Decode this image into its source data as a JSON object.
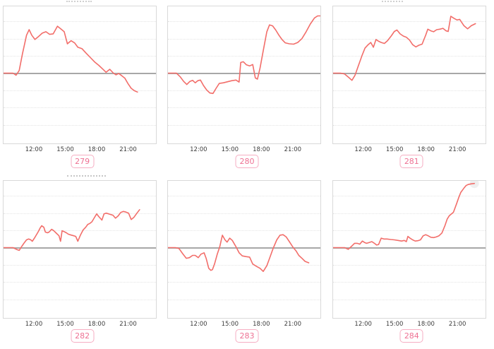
{
  "page": {
    "background": "#ffffff"
  },
  "styles": {
    "line_color": "#f26e6a",
    "zero_line_color": "#a8a8a8",
    "grid_line_color": "#e4e4e4",
    "plot_border_color": "#d9d9d9",
    "axis_text_color": "#3c3c3c",
    "badge_text_color": "#ee7193",
    "badge_border_color": "#f6aec3",
    "end_halo_color": "#efefef"
  },
  "chart_data": [
    {
      "type": "line",
      "label": "279",
      "x_unit": "hour_of_day",
      "x_range": [
        9,
        23.7
      ],
      "x_ticks": [
        "12:00",
        "15:00",
        "18:00",
        "21:00"
      ],
      "tick_hours": [
        12,
        15,
        18,
        21
      ],
      "y_unit": "gridline_units_from_baseline",
      "baseline": 0,
      "grid": "dotted-horizontal",
      "legend": "none",
      "end_marker_halo": false,
      "points": [
        [
          9,
          0
        ],
        [
          9.9,
          0
        ],
        [
          10.2,
          -0.12
        ],
        [
          10.5,
          0.15
        ],
        [
          10.8,
          1.1
        ],
        [
          11.2,
          2.2
        ],
        [
          11.45,
          2.52
        ],
        [
          11.7,
          2.2
        ],
        [
          12.0,
          1.95
        ],
        [
          12.3,
          2.1
        ],
        [
          12.7,
          2.32
        ],
        [
          13.05,
          2.4
        ],
        [
          13.4,
          2.25
        ],
        [
          13.75,
          2.28
        ],
        [
          14.15,
          2.72
        ],
        [
          14.5,
          2.55
        ],
        [
          14.8,
          2.4
        ],
        [
          15.1,
          1.7
        ],
        [
          15.45,
          1.88
        ],
        [
          15.8,
          1.75
        ],
        [
          16.1,
          1.5
        ],
        [
          16.5,
          1.42
        ],
        [
          16.9,
          1.15
        ],
        [
          17.3,
          0.9
        ],
        [
          17.7,
          0.65
        ],
        [
          18.1,
          0.45
        ],
        [
          18.5,
          0.22
        ],
        [
          18.8,
          0.05
        ],
        [
          19.15,
          0.22
        ],
        [
          19.5,
          0.0
        ],
        [
          19.75,
          -0.1
        ],
        [
          20.0,
          -0.02
        ],
        [
          20.3,
          -0.15
        ],
        [
          20.6,
          -0.3
        ],
        [
          20.9,
          -0.62
        ],
        [
          21.2,
          -0.88
        ],
        [
          21.5,
          -1.02
        ],
        [
          21.8,
          -1.1
        ]
      ]
    },
    {
      "type": "line",
      "label": "280",
      "x_unit": "hour_of_day",
      "x_range": [
        9,
        23.7
      ],
      "x_ticks": [
        "12:00",
        "15:00",
        "18:00",
        "21:00"
      ],
      "tick_hours": [
        12,
        15,
        18,
        21
      ],
      "y_unit": "gridline_units_from_baseline",
      "baseline": 0,
      "grid": "dotted-horizontal",
      "legend": "none",
      "end_marker_halo": false,
      "points": [
        [
          9,
          0
        ],
        [
          9.8,
          0
        ],
        [
          10.15,
          -0.2
        ],
        [
          10.5,
          -0.48
        ],
        [
          10.8,
          -0.66
        ],
        [
          11.1,
          -0.48
        ],
        [
          11.35,
          -0.42
        ],
        [
          11.6,
          -0.56
        ],
        [
          11.85,
          -0.44
        ],
        [
          12.1,
          -0.4
        ],
        [
          12.4,
          -0.72
        ],
        [
          12.7,
          -0.98
        ],
        [
          13.0,
          -1.15
        ],
        [
          13.3,
          -1.18
        ],
        [
          13.6,
          -0.88
        ],
        [
          13.9,
          -0.6
        ],
        [
          14.3,
          -0.56
        ],
        [
          14.7,
          -0.5
        ],
        [
          15.1,
          -0.44
        ],
        [
          15.5,
          -0.4
        ],
        [
          15.8,
          -0.52
        ],
        [
          15.95,
          0.62
        ],
        [
          16.2,
          0.66
        ],
        [
          16.5,
          0.48
        ],
        [
          16.8,
          0.42
        ],
        [
          17.1,
          0.5
        ],
        [
          17.35,
          -0.28
        ],
        [
          17.55,
          -0.35
        ],
        [
          17.8,
          0.3
        ],
        [
          18.1,
          1.3
        ],
        [
          18.45,
          2.4
        ],
        [
          18.7,
          2.8
        ],
        [
          19.0,
          2.74
        ],
        [
          19.3,
          2.5
        ],
        [
          19.6,
          2.2
        ],
        [
          19.9,
          1.95
        ],
        [
          20.2,
          1.76
        ],
        [
          20.6,
          1.7
        ],
        [
          21.0,
          1.68
        ],
        [
          21.4,
          1.78
        ],
        [
          21.8,
          2.0
        ],
        [
          22.2,
          2.4
        ],
        [
          22.6,
          2.85
        ],
        [
          23.0,
          3.2
        ],
        [
          23.3,
          3.32
        ],
        [
          23.65,
          3.32
        ]
      ]
    },
    {
      "type": "line",
      "label": "281",
      "x_unit": "hour_of_day",
      "x_range": [
        9,
        23.7
      ],
      "x_ticks": [
        "12:00",
        "15:00",
        "18:00",
        "21:00"
      ],
      "tick_hours": [
        12,
        15,
        18,
        21
      ],
      "y_unit": "gridline_units_from_baseline",
      "baseline": 0,
      "grid": "dotted-horizontal",
      "legend": "none",
      "end_marker_halo": false,
      "points": [
        [
          9,
          0
        ],
        [
          9.7,
          0
        ],
        [
          10.1,
          -0.05
        ],
        [
          10.5,
          -0.25
        ],
        [
          10.8,
          -0.42
        ],
        [
          11.1,
          -0.12
        ],
        [
          11.4,
          0.4
        ],
        [
          11.75,
          1.0
        ],
        [
          12.05,
          1.45
        ],
        [
          12.35,
          1.65
        ],
        [
          12.6,
          1.78
        ],
        [
          12.85,
          1.5
        ],
        [
          13.1,
          1.95
        ],
        [
          13.35,
          1.85
        ],
        [
          13.6,
          1.78
        ],
        [
          13.9,
          1.72
        ],
        [
          14.2,
          1.88
        ],
        [
          14.55,
          2.15
        ],
        [
          14.85,
          2.42
        ],
        [
          15.1,
          2.5
        ],
        [
          15.4,
          2.28
        ],
        [
          15.7,
          2.15
        ],
        [
          16.0,
          2.08
        ],
        [
          16.3,
          1.92
        ],
        [
          16.6,
          1.65
        ],
        [
          16.9,
          1.52
        ],
        [
          17.2,
          1.62
        ],
        [
          17.5,
          1.68
        ],
        [
          17.85,
          2.2
        ],
        [
          18.05,
          2.55
        ],
        [
          18.35,
          2.45
        ],
        [
          18.6,
          2.4
        ],
        [
          18.9,
          2.52
        ],
        [
          19.2,
          2.55
        ],
        [
          19.5,
          2.6
        ],
        [
          19.8,
          2.45
        ],
        [
          20.0,
          2.42
        ],
        [
          20.25,
          3.3
        ],
        [
          20.55,
          3.18
        ],
        [
          20.85,
          3.08
        ],
        [
          21.1,
          3.12
        ],
        [
          21.5,
          2.75
        ],
        [
          21.85,
          2.57
        ],
        [
          22.2,
          2.75
        ],
        [
          22.6,
          2.87
        ]
      ]
    },
    {
      "type": "line",
      "label": "282",
      "x_unit": "hour_of_day",
      "x_range": [
        9,
        23.7
      ],
      "x_ticks": [
        "12:00",
        "15:00",
        "18:00",
        "21:00"
      ],
      "tick_hours": [
        12,
        15,
        18,
        21
      ],
      "y_unit": "gridline_units_from_baseline",
      "baseline": 0,
      "grid": "dotted-horizontal",
      "legend": "none",
      "end_marker_halo": false,
      "points": [
        [
          9,
          0
        ],
        [
          9.9,
          0
        ],
        [
          10.3,
          -0.12
        ],
        [
          10.5,
          -0.16
        ],
        [
          10.75,
          0.08
        ],
        [
          11.0,
          0.3
        ],
        [
          11.2,
          0.45
        ],
        [
          11.4,
          0.5
        ],
        [
          11.6,
          0.45
        ],
        [
          11.75,
          0.37
        ],
        [
          12.0,
          0.6
        ],
        [
          12.3,
          0.9
        ],
        [
          12.5,
          1.14
        ],
        [
          12.65,
          1.27
        ],
        [
          12.85,
          1.18
        ],
        [
          13.0,
          0.9
        ],
        [
          13.2,
          0.86
        ],
        [
          13.35,
          0.9
        ],
        [
          13.6,
          1.06
        ],
        [
          13.8,
          0.98
        ],
        [
          14.0,
          0.86
        ],
        [
          14.3,
          0.69
        ],
        [
          14.45,
          0.37
        ],
        [
          14.6,
          0.98
        ],
        [
          14.75,
          0.94
        ],
        [
          15.0,
          0.86
        ],
        [
          15.2,
          0.78
        ],
        [
          15.45,
          0.73
        ],
        [
          15.7,
          0.69
        ],
        [
          15.9,
          0.65
        ],
        [
          16.1,
          0.37
        ],
        [
          16.35,
          0.73
        ],
        [
          16.6,
          1.02
        ],
        [
          16.85,
          1.18
        ],
        [
          17.05,
          1.35
        ],
        [
          17.25,
          1.4
        ],
        [
          17.45,
          1.5
        ],
        [
          17.7,
          1.76
        ],
        [
          17.9,
          1.96
        ],
        [
          18.1,
          1.8
        ],
        [
          18.4,
          1.6
        ],
        [
          18.6,
          1.96
        ],
        [
          18.8,
          2.0
        ],
        [
          19.05,
          1.96
        ],
        [
          19.25,
          1.92
        ],
        [
          19.45,
          1.88
        ],
        [
          19.7,
          1.71
        ],
        [
          19.95,
          1.84
        ],
        [
          20.2,
          2.04
        ],
        [
          20.45,
          2.1
        ],
        [
          20.7,
          2.06
        ],
        [
          20.95,
          2.0
        ],
        [
          21.2,
          1.63
        ],
        [
          21.45,
          1.75
        ],
        [
          21.7,
          1.96
        ],
        [
          22.0,
          2.2
        ]
      ]
    },
    {
      "type": "line",
      "label": "283",
      "x_unit": "hour_of_day",
      "x_range": [
        9,
        23.7
      ],
      "x_ticks": [
        "12:00",
        "15:00",
        "18:00",
        "21:00"
      ],
      "tick_hours": [
        12,
        15,
        18,
        21
      ],
      "y_unit": "gridline_units_from_baseline",
      "baseline": 0,
      "grid": "dotted-horizontal",
      "legend": "none",
      "end_marker_halo": false,
      "points": [
        [
          9,
          0
        ],
        [
          9.7,
          0
        ],
        [
          10.05,
          -0.05
        ],
        [
          10.4,
          -0.35
        ],
        [
          10.75,
          -0.62
        ],
        [
          11.05,
          -0.58
        ],
        [
          11.35,
          -0.45
        ],
        [
          11.6,
          -0.45
        ],
        [
          11.9,
          -0.58
        ],
        [
          12.15,
          -0.38
        ],
        [
          12.45,
          -0.3
        ],
        [
          12.65,
          -0.62
        ],
        [
          12.9,
          -1.2
        ],
        [
          13.1,
          -1.32
        ],
        [
          13.25,
          -1.28
        ],
        [
          13.45,
          -0.95
        ],
        [
          13.7,
          -0.4
        ],
        [
          13.95,
          0.05
        ],
        [
          14.2,
          0.72
        ],
        [
          14.45,
          0.45
        ],
        [
          14.65,
          0.32
        ],
        [
          14.9,
          0.55
        ],
        [
          15.15,
          0.42
        ],
        [
          15.5,
          0.05
        ],
        [
          15.8,
          -0.3
        ],
        [
          16.1,
          -0.48
        ],
        [
          16.45,
          -0.52
        ],
        [
          16.8,
          -0.55
        ],
        [
          17.1,
          -0.95
        ],
        [
          17.45,
          -1.08
        ],
        [
          17.8,
          -1.2
        ],
        [
          18.1,
          -1.38
        ],
        [
          18.45,
          -1.05
        ],
        [
          18.75,
          -0.55
        ],
        [
          19.05,
          -0.05
        ],
        [
          19.4,
          0.45
        ],
        [
          19.7,
          0.72
        ],
        [
          20.0,
          0.75
        ],
        [
          20.3,
          0.62
        ],
        [
          20.6,
          0.35
        ],
        [
          20.95,
          0.02
        ],
        [
          21.25,
          -0.2
        ],
        [
          21.5,
          -0.45
        ],
        [
          21.8,
          -0.62
        ],
        [
          22.1,
          -0.8
        ],
        [
          22.45,
          -0.88
        ]
      ]
    },
    {
      "type": "line",
      "label": "284",
      "x_unit": "hour_of_day",
      "x_range": [
        9,
        23.7
      ],
      "x_ticks": [
        "12:00",
        "15:00",
        "18:00",
        "21:00"
      ],
      "tick_hours": [
        12,
        15,
        18,
        21
      ],
      "y_unit": "gridline_units_from_baseline",
      "baseline": 0,
      "grid": "dotted-horizontal",
      "legend": "none",
      "end_marker_halo": true,
      "points": [
        [
          9,
          0
        ],
        [
          10.1,
          0
        ],
        [
          10.45,
          -0.1
        ],
        [
          10.8,
          0.1
        ],
        [
          11.05,
          0.25
        ],
        [
          11.3,
          0.25
        ],
        [
          11.55,
          0.2
        ],
        [
          11.8,
          0.38
        ],
        [
          12.0,
          0.3
        ],
        [
          12.2,
          0.25
        ],
        [
          12.45,
          0.3
        ],
        [
          12.7,
          0.35
        ],
        [
          12.95,
          0.25
        ],
        [
          13.15,
          0.15
        ],
        [
          13.35,
          0.18
        ],
        [
          13.6,
          0.55
        ],
        [
          13.85,
          0.5
        ],
        [
          14.15,
          0.5
        ],
        [
          14.5,
          0.47
        ],
        [
          14.85,
          0.45
        ],
        [
          15.2,
          0.42
        ],
        [
          15.55,
          0.38
        ],
        [
          15.8,
          0.42
        ],
        [
          16.0,
          0.35
        ],
        [
          16.15,
          0.65
        ],
        [
          16.35,
          0.55
        ],
        [
          16.6,
          0.45
        ],
        [
          16.85,
          0.38
        ],
        [
          17.1,
          0.4
        ],
        [
          17.35,
          0.45
        ],
        [
          17.6,
          0.68
        ],
        [
          17.85,
          0.75
        ],
        [
          18.1,
          0.68
        ],
        [
          18.35,
          0.6
        ],
        [
          18.6,
          0.58
        ],
        [
          18.85,
          0.62
        ],
        [
          19.1,
          0.68
        ],
        [
          19.4,
          0.85
        ],
        [
          19.7,
          1.3
        ],
        [
          19.9,
          1.65
        ],
        [
          20.1,
          1.85
        ],
        [
          20.3,
          1.95
        ],
        [
          20.5,
          2.05
        ],
        [
          20.8,
          2.55
        ],
        [
          21.0,
          2.9
        ],
        [
          21.2,
          3.2
        ],
        [
          21.5,
          3.45
        ],
        [
          21.7,
          3.6
        ],
        [
          21.9,
          3.66
        ],
        [
          22.2,
          3.7
        ],
        [
          22.5,
          3.72
        ]
      ]
    }
  ]
}
